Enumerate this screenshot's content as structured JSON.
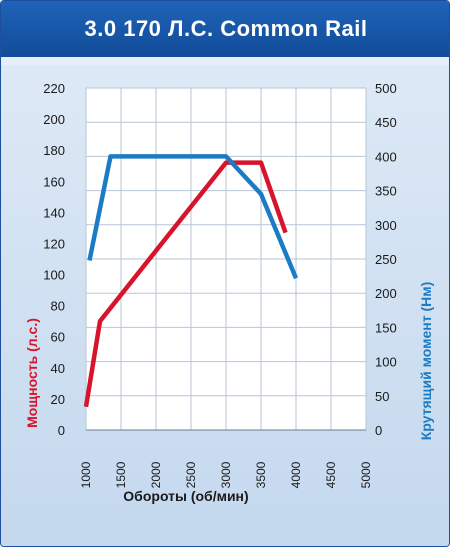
{
  "title": "3.0 170 Л.С. Common Rail",
  "chart_data": {
    "type": "line",
    "title": "3.0 170 Л.С. Common Rail",
    "xlabel": "Обороты (об/мин)",
    "ylabel_left": "Мощность (л.с.)",
    "ylabel_right": "Крутящий момент (Нм)",
    "xlim": [
      1000,
      5000
    ],
    "ylim_left": [
      0,
      220
    ],
    "ylim_right": [
      0,
      500
    ],
    "x_ticks": [
      1000,
      1500,
      2000,
      2500,
      3000,
      3500,
      4000,
      4500,
      5000
    ],
    "y_ticks_left": [
      0,
      20,
      40,
      60,
      80,
      100,
      120,
      140,
      160,
      180,
      200,
      220
    ],
    "y_ticks_right": [
      0,
      50,
      100,
      150,
      200,
      250,
      300,
      350,
      400,
      450,
      500
    ],
    "grid": true,
    "series": [
      {
        "name": "Мощность (л.с.)",
        "axis": "left",
        "color": "#d7142b",
        "x": [
          1000,
          1200,
          3000,
          3500,
          3850
        ],
        "y": [
          15,
          70,
          172,
          172,
          127
        ]
      },
      {
        "name": "Крутящий момент (Нм)",
        "axis": "right",
        "color": "#1b7cc4",
        "x": [
          1050,
          1350,
          3000,
          3500,
          4000
        ],
        "y": [
          248,
          400,
          400,
          345,
          222
        ]
      }
    ]
  }
}
